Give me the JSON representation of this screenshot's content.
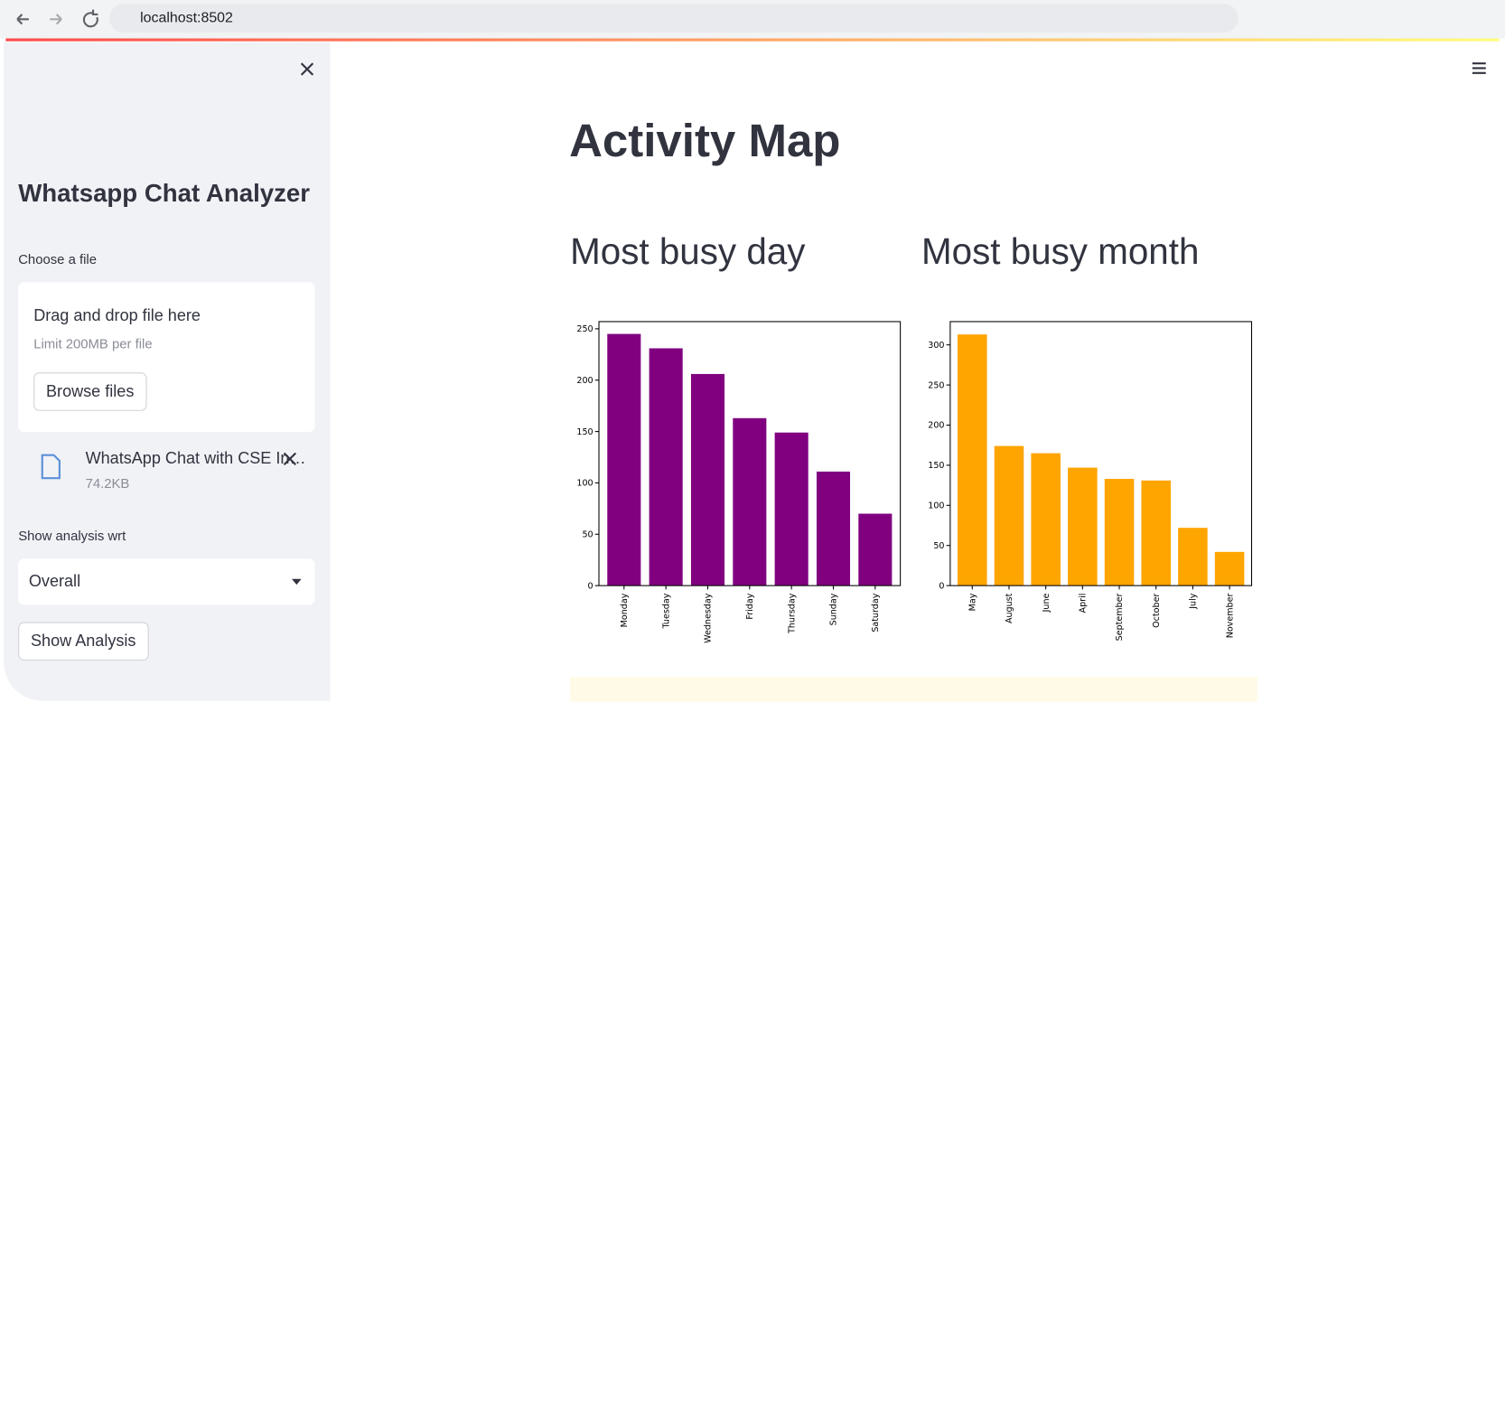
{
  "browser": {
    "url": "localhost:8502"
  },
  "sidebar": {
    "title": "Whatsapp Chat Analyzer",
    "file_label": "Choose a file",
    "drop_text": "Drag and drop file here",
    "limit_text": "Limit 200MB per file",
    "browse_button": "Browse files",
    "file_name": "WhatsApp Chat with CSE In…",
    "file_size": "74.2KB",
    "select_label": "Show analysis wrt",
    "select_value": "Overall",
    "analysis_button": "Show Analysis"
  },
  "main": {
    "title": "Activity Map",
    "headings": [
      "Most busy day",
      "Most busy month"
    ]
  },
  "chart_data": [
    {
      "type": "bar",
      "categories": [
        "Monday",
        "Tuesday",
        "Wednesday",
        "Friday",
        "Thursday",
        "Sunday",
        "Saturday"
      ],
      "values": [
        245,
        231,
        206,
        163,
        149,
        111,
        70
      ],
      "color": "#800080",
      "ylim": [
        0,
        257
      ],
      "yticks": [
        0,
        50,
        100,
        150,
        200,
        250
      ]
    },
    {
      "type": "bar",
      "categories": [
        "May",
        "August",
        "June",
        "April",
        "September",
        "October",
        "July",
        "November"
      ],
      "values": [
        313,
        174,
        165,
        147,
        133,
        131,
        72,
        42
      ],
      "color": "#ffa500",
      "ylim": [
        0,
        329
      ],
      "yticks": [
        0,
        50,
        100,
        150,
        200,
        250,
        300
      ]
    }
  ]
}
